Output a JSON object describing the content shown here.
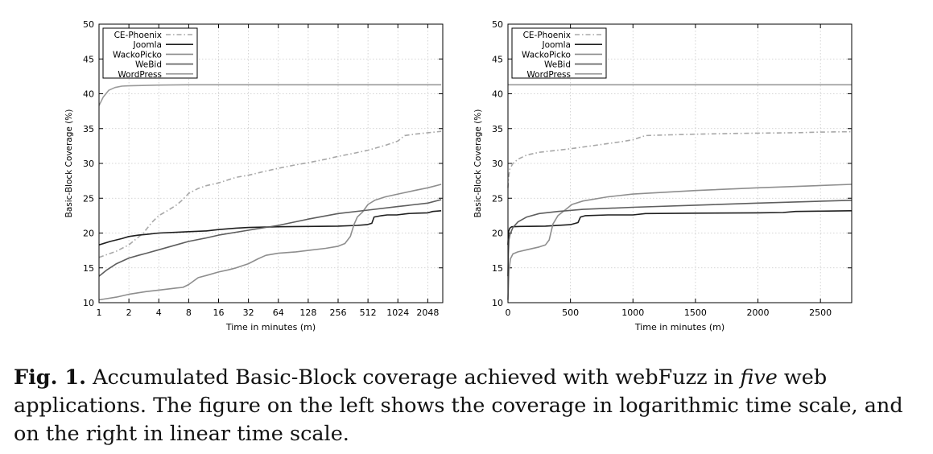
{
  "chart_data": [
    {
      "type": "line",
      "xlabel": "Time in minutes (m)",
      "ylabel": "Basic-Block Coverage (%)",
      "xscale": "log2",
      "xlim": [
        1,
        2900
      ],
      "ylim": [
        10,
        50
      ],
      "xticks": [
        1,
        2,
        4,
        8,
        16,
        32,
        64,
        128,
        256,
        512,
        1024,
        2048
      ],
      "xtick_labels": [
        "1",
        "2",
        "4",
        "8",
        "16",
        "32",
        "64",
        "128",
        "256",
        "512",
        "1024",
        "2048"
      ],
      "yticks": [
        10,
        15,
        20,
        25,
        30,
        35,
        40,
        45,
        50
      ],
      "ytick_labels": [
        "10",
        "15",
        "20",
        "25",
        "30",
        "35",
        "40",
        "45",
        "50"
      ],
      "grid": true,
      "legend_position": "top-left",
      "series": [
        {
          "name": "CE-Phoenix",
          "color": "#a8a8a8",
          "dash": "dashdot",
          "x": [
            1,
            1.5,
            2,
            2.8,
            3.4,
            4,
            5,
            6,
            7,
            8,
            10,
            12,
            16,
            24,
            32,
            48,
            64,
            96,
            128,
            192,
            256,
            384,
            512,
            768,
            1024,
            1200,
            1500,
            2048,
            2800
          ],
          "y": [
            16.5,
            17.4,
            18.3,
            20,
            21.5,
            22.5,
            23.3,
            24,
            24.8,
            25.7,
            26.4,
            26.8,
            27.2,
            28,
            28.3,
            28.9,
            29.3,
            29.8,
            30.1,
            30.6,
            31,
            31.5,
            31.9,
            32.6,
            33.2,
            34,
            34.2,
            34.4,
            34.6
          ]
        },
        {
          "name": "Joomla",
          "color": "#1e1e1e",
          "dash": "solid",
          "x": [
            1,
            1.3,
            1.7,
            2,
            2.5,
            3,
            4,
            6,
            8,
            12,
            16,
            24,
            32,
            48,
            64,
            128,
            256,
            400,
            500,
            560,
            590,
            700,
            800,
            1000,
            1300,
            1600,
            2048,
            2300,
            2500,
            2800
          ],
          "y": [
            18.3,
            18.8,
            19.2,
            19.5,
            19.7,
            19.8,
            20,
            20.1,
            20.2,
            20.3,
            20.5,
            20.7,
            20.8,
            20.85,
            20.9,
            20.95,
            21,
            21.1,
            21.2,
            21.4,
            22.3,
            22.5,
            22.6,
            22.6,
            22.8,
            22.85,
            22.9,
            23.1,
            23.15,
            23.2
          ]
        },
        {
          "name": "WackoPicko",
          "color": "#8e8e8e",
          "dash": "solid",
          "x": [
            1,
            1.5,
            2,
            3,
            4,
            6,
            7,
            8,
            10,
            12,
            16,
            20,
            24,
            32,
            40,
            48,
            64,
            96,
            128,
            192,
            256,
            300,
            340,
            370,
            400,
            450,
            512,
            600,
            768,
            1024,
            1500,
            2048,
            2800
          ],
          "y": [
            10.4,
            10.8,
            11.2,
            11.6,
            11.8,
            12.1,
            12.2,
            12.6,
            13.6,
            13.9,
            14.4,
            14.7,
            15,
            15.6,
            16.3,
            16.8,
            17.1,
            17.3,
            17.5,
            17.8,
            18.1,
            18.5,
            19.5,
            21.2,
            22.3,
            23,
            24.1,
            24.7,
            25.2,
            25.6,
            26.1,
            26.5,
            27
          ]
        },
        {
          "name": "WeBid",
          "color": "#5e5e5e",
          "dash": "solid",
          "x": [
            1,
            1.2,
            1.5,
            2,
            2.5,
            3,
            4,
            6,
            8,
            12,
            16,
            32,
            64,
            128,
            256,
            512,
            1024,
            2048,
            2800
          ],
          "y": [
            13.8,
            14.7,
            15.6,
            16.4,
            16.8,
            17.1,
            17.6,
            18.3,
            18.8,
            19.3,
            19.7,
            20.4,
            21.1,
            22,
            22.8,
            23.3,
            23.8,
            24.3,
            24.8
          ]
        },
        {
          "name": "WordPress",
          "color": "#9a9a9a",
          "dash": "solid",
          "x": [
            1,
            1.1,
            1.25,
            1.45,
            1.7,
            2,
            3,
            4,
            8,
            2800
          ],
          "y": [
            38.3,
            39.5,
            40.5,
            40.9,
            41.1,
            41.15,
            41.2,
            41.25,
            41.3,
            41.3
          ]
        }
      ]
    },
    {
      "type": "line",
      "xlabel": "Time in minutes (m)",
      "ylabel": "Basic-Block Coverage (%)",
      "xscale": "linear",
      "xlim": [
        0,
        2750
      ],
      "ylim": [
        10,
        50
      ],
      "xticks": [
        0,
        500,
        1000,
        1500,
        2000,
        2500
      ],
      "xtick_labels": [
        "0",
        "500",
        "1000",
        "1500",
        "2000",
        "2500"
      ],
      "yticks": [
        10,
        15,
        20,
        25,
        30,
        35,
        40,
        45,
        50
      ],
      "ytick_labels": [
        "10",
        "15",
        "20",
        "25",
        "30",
        "35",
        "40",
        "45",
        "50"
      ],
      "grid": true,
      "legend_position": "top-left",
      "series": [
        {
          "name": "CE-Phoenix",
          "color": "#a8a8a8",
          "dash": "dashdot",
          "x": [
            0,
            5,
            15,
            40,
            80,
            150,
            250,
            400,
            500,
            700,
            900,
            1000,
            1100,
            1300,
            1500,
            1800,
            2000,
            2300,
            2500,
            2750
          ],
          "y": [
            26.5,
            28,
            29.2,
            30,
            30.6,
            31.2,
            31.6,
            31.9,
            32.1,
            32.6,
            33.1,
            33.4,
            34,
            34.1,
            34.2,
            34.3,
            34.35,
            34.4,
            34.5,
            34.55
          ]
        },
        {
          "name": "Joomla",
          "color": "#1e1e1e",
          "dash": "solid",
          "x": [
            0,
            5,
            15,
            30,
            100,
            300,
            500,
            560,
            580,
            620,
            800,
            1000,
            1100,
            1500,
            2000,
            2200,
            2300,
            2500,
            2750
          ],
          "y": [
            18.3,
            20.2,
            20.7,
            20.9,
            20.95,
            21,
            21.2,
            21.5,
            22.3,
            22.5,
            22.6,
            22.6,
            22.8,
            22.85,
            22.9,
            22.95,
            23.1,
            23.15,
            23.2
          ]
        },
        {
          "name": "WackoPicko",
          "color": "#8e8e8e",
          "dash": "solid",
          "x": [
            0,
            8,
            20,
            40,
            80,
            150,
            250,
            300,
            330,
            360,
            400,
            450,
            512,
            600,
            800,
            1000,
            1500,
            2000,
            2750
          ],
          "y": [
            10.4,
            14.5,
            16.3,
            17,
            17.3,
            17.6,
            18,
            18.3,
            19,
            21.3,
            22.5,
            23.2,
            24.1,
            24.6,
            25.2,
            25.6,
            26.1,
            26.5,
            27
          ]
        },
        {
          "name": "WeBid",
          "color": "#5e5e5e",
          "dash": "solid",
          "x": [
            0,
            3,
            8,
            16,
            40,
            80,
            150,
            250,
            400,
            600,
            1000,
            1500,
            2000,
            2750
          ],
          "y": [
            13.8,
            17,
            19,
            19.8,
            20.8,
            21.6,
            22.3,
            22.8,
            23.1,
            23.4,
            23.7,
            24,
            24.3,
            24.7
          ]
        },
        {
          "name": "WordPress",
          "color": "#9a9a9a",
          "dash": "solid",
          "x": [
            0,
            2750
          ],
          "y": [
            41.3,
            41.3
          ]
        }
      ]
    }
  ],
  "caption": {
    "label": "Fig. 1.",
    "text_before": " Accumulated Basic-Block coverage achieved with webFuzz in ",
    "emphasis": "five",
    "text_after": " web applications. The figure on the left shows the coverage in logarithmic time scale, and on the right in linear time scale."
  }
}
